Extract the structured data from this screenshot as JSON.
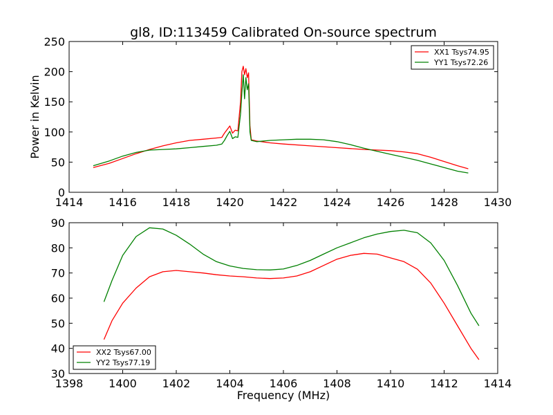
{
  "figure": {
    "title": "gl8, ID:113459 Calibrated On-source spectrum",
    "xlabel": "Frequency (MHz)"
  },
  "chart_data": [
    {
      "type": "line",
      "title": "gl8, ID:113459 Calibrated On-source spectrum",
      "xlabel": "",
      "ylabel": "Power in Kelvin",
      "xlim": [
        1414,
        1430
      ],
      "ylim": [
        0,
        250
      ],
      "xticks": [
        "1414",
        "1416",
        "1418",
        "1420",
        "1422",
        "1424",
        "1426",
        "1428",
        "1430"
      ],
      "yticks": [
        "0",
        "50",
        "100",
        "150",
        "200",
        "250"
      ],
      "grid": false,
      "legend_position": "top-right",
      "series": [
        {
          "name": "XX1 Tsys74.95",
          "color": "#ff0000",
          "x": [
            1414.9,
            1415.5,
            1416.0,
            1416.5,
            1417.0,
            1417.5,
            1418.0,
            1418.5,
            1419.0,
            1419.5,
            1419.7,
            1419.8,
            1419.9,
            1420.0,
            1420.1,
            1420.2,
            1420.3,
            1420.4,
            1420.45,
            1420.5,
            1420.55,
            1420.6,
            1420.65,
            1420.7,
            1420.75,
            1420.8,
            1420.9,
            1421.0,
            1421.5,
            1422.0,
            1423.0,
            1424.0,
            1425.0,
            1426.0,
            1426.5,
            1427.0,
            1427.5,
            1428.0,
            1428.5,
            1428.9
          ],
          "y": [
            41,
            48,
            56,
            64,
            71,
            77,
            82,
            86,
            88,
            90,
            91,
            98,
            104,
            110,
            98,
            103,
            102,
            150,
            200,
            209,
            195,
            205,
            190,
            198,
            110,
            87,
            86,
            85,
            82,
            80,
            77,
            74,
            71,
            69,
            67,
            64,
            58,
            51,
            44,
            39
          ]
        },
        {
          "name": "YY1 Tsys72.26",
          "color": "#008000",
          "x": [
            1414.9,
            1415.5,
            1416.0,
            1416.5,
            1417.0,
            1417.5,
            1418.0,
            1418.5,
            1419.0,
            1419.5,
            1419.7,
            1419.8,
            1419.9,
            1420.0,
            1420.1,
            1420.2,
            1420.3,
            1420.4,
            1420.45,
            1420.5,
            1420.55,
            1420.6,
            1420.65,
            1420.7,
            1420.75,
            1420.8,
            1420.9,
            1421.0,
            1421.5,
            1422.0,
            1422.5,
            1423.0,
            1423.5,
            1424.0,
            1424.5,
            1425.0,
            1425.5,
            1426.0,
            1426.5,
            1427.0,
            1427.5,
            1428.0,
            1428.5,
            1428.9
          ],
          "y": [
            44,
            52,
            60,
            66,
            70,
            71,
            72,
            74,
            76,
            78,
            80,
            86,
            94,
            101,
            89,
            92,
            91,
            130,
            165,
            195,
            155,
            190,
            170,
            180,
            100,
            86,
            85,
            84,
            86,
            87,
            88,
            88,
            87,
            84,
            79,
            73,
            68,
            63,
            58,
            53,
            47,
            41,
            35,
            32
          ]
        }
      ]
    },
    {
      "type": "line",
      "title": "",
      "xlabel": "Frequency (MHz)",
      "ylabel": "",
      "xlim": [
        1398,
        1414
      ],
      "ylim": [
        30,
        90
      ],
      "xticks": [
        "1398",
        "1400",
        "1402",
        "1404",
        "1406",
        "1408",
        "1410",
        "1412",
        "1414"
      ],
      "yticks": [
        "30",
        "40",
        "50",
        "60",
        "70",
        "80",
        "90"
      ],
      "grid": false,
      "legend_position": "bottom-left",
      "series": [
        {
          "name": "XX2 Tsys67.00",
          "color": "#ff0000",
          "x": [
            1399.3,
            1399.6,
            1400.0,
            1400.5,
            1401.0,
            1401.5,
            1402.0,
            1402.5,
            1403.0,
            1403.5,
            1404.0,
            1404.5,
            1405.0,
            1405.5,
            1406.0,
            1406.5,
            1407.0,
            1407.5,
            1408.0,
            1408.5,
            1409.0,
            1409.5,
            1410.0,
            1410.5,
            1411.0,
            1411.5,
            1412.0,
            1412.5,
            1413.0,
            1413.3
          ],
          "y": [
            43.5,
            51,
            58,
            64,
            68.5,
            70.5,
            71,
            70.5,
            70,
            69.3,
            68.8,
            68.5,
            68,
            67.8,
            68,
            68.8,
            70.5,
            73,
            75.5,
            77,
            77.8,
            77.5,
            76,
            74.5,
            71.5,
            66,
            58,
            49,
            40,
            35.5
          ]
        },
        {
          "name": "YY2 Tsys77.19",
          "color": "#008000",
          "x": [
            1399.3,
            1399.6,
            1400.0,
            1400.5,
            1401.0,
            1401.5,
            1402.0,
            1402.5,
            1403.0,
            1403.5,
            1404.0,
            1404.5,
            1405.0,
            1405.5,
            1406.0,
            1406.5,
            1407.0,
            1407.5,
            1408.0,
            1408.5,
            1409.0,
            1409.5,
            1410.0,
            1410.5,
            1411.0,
            1411.5,
            1412.0,
            1412.5,
            1413.0,
            1413.3
          ],
          "y": [
            58.5,
            67,
            77,
            84.5,
            88,
            87.5,
            85,
            81.5,
            77.5,
            74.5,
            72.8,
            71.8,
            71.3,
            71.2,
            71.6,
            73,
            75,
            77.5,
            80,
            82,
            84,
            85.5,
            86.5,
            87,
            86,
            82,
            75,
            65,
            54,
            49
          ]
        }
      ]
    }
  ]
}
